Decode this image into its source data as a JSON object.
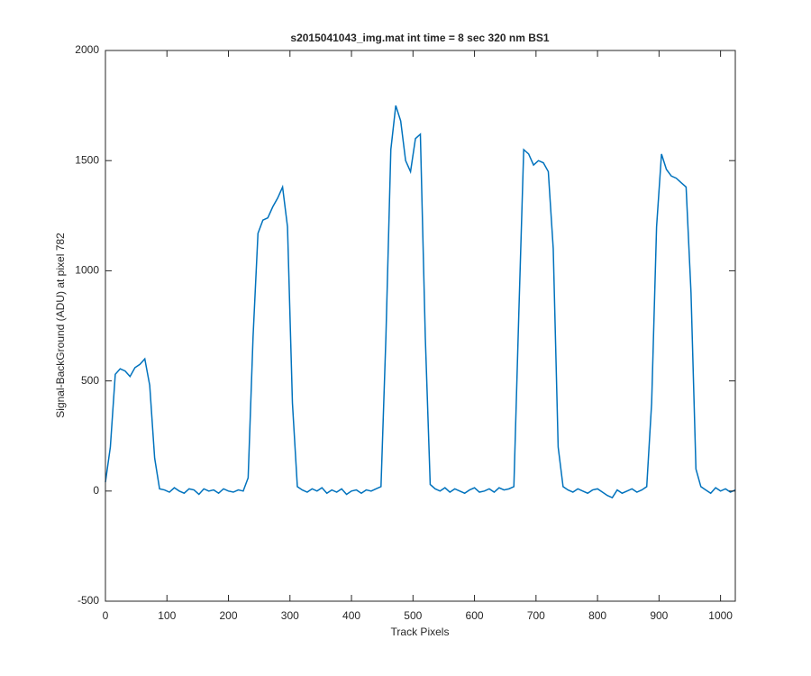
{
  "chart_data": {
    "type": "line",
    "title": "s2015041043_img.mat int time = 8 sec  320 nm BS1",
    "x_label": "Track Pixels",
    "y_label": "Signal-BackGround (ADU) at pixel 782",
    "x": [
      0,
      8,
      16,
      24,
      32,
      40,
      48,
      56,
      64,
      72,
      80,
      88,
      96,
      104,
      112,
      120,
      128,
      136,
      144,
      152,
      160,
      168,
      176,
      184,
      192,
      200,
      208,
      216,
      224,
      232,
      240,
      248,
      256,
      264,
      272,
      280,
      288,
      296,
      304,
      312,
      320,
      328,
      336,
      344,
      352,
      360,
      368,
      376,
      384,
      392,
      400,
      408,
      416,
      424,
      432,
      440,
      448,
      456,
      464,
      472,
      480,
      488,
      496,
      504,
      512,
      520,
      528,
      536,
      544,
      552,
      560,
      568,
      576,
      584,
      592,
      600,
      608,
      616,
      624,
      632,
      640,
      648,
      656,
      664,
      672,
      680,
      688,
      696,
      704,
      712,
      720,
      728,
      736,
      744,
      752,
      760,
      768,
      776,
      784,
      792,
      800,
      808,
      816,
      824,
      832,
      840,
      848,
      856,
      864,
      872,
      880,
      888,
      896,
      904,
      912,
      920,
      928,
      936,
      944,
      952,
      960,
      968,
      976,
      984,
      992,
      1000,
      1008,
      1016,
      1024
    ],
    "series": [
      {
        "color": "#0072bd",
        "values": [
          40,
          200,
          530,
          555,
          545,
          520,
          560,
          575,
          600,
          480,
          150,
          10,
          5,
          -5,
          15,
          0,
          -10,
          10,
          5,
          -15,
          10,
          0,
          5,
          -10,
          10,
          0,
          -5,
          5,
          0,
          60,
          700,
          1170,
          1230,
          1240,
          1290,
          1330,
          1380,
          1200,
          400,
          20,
          5,
          -5,
          10,
          0,
          15,
          -10,
          5,
          -5,
          10,
          -15,
          0,
          5,
          -10,
          5,
          0,
          10,
          20,
          700,
          1550,
          1750,
          1680,
          1500,
          1450,
          1600,
          1620,
          700,
          30,
          10,
          0,
          15,
          -5,
          10,
          0,
          -10,
          5,
          15,
          -5,
          0,
          10,
          -5,
          15,
          5,
          10,
          20,
          800,
          1550,
          1530,
          1480,
          1500,
          1490,
          1450,
          1100,
          200,
          20,
          5,
          -5,
          10,
          0,
          -10,
          5,
          10,
          -5,
          -20,
          -30,
          5,
          -10,
          0,
          10,
          -5,
          5,
          20,
          400,
          1200,
          1530,
          1460,
          1430,
          1420,
          1400,
          1380,
          900,
          100,
          20,
          5,
          -10,
          15,
          0,
          10,
          -5,
          5
        ]
      }
    ],
    "xlim": [
      0,
      1024
    ],
    "ylim": [
      -500,
      2000
    ],
    "xticks": [
      0,
      100,
      200,
      300,
      400,
      500,
      600,
      700,
      800,
      900,
      1000
    ],
    "yticks": [
      -500,
      0,
      500,
      1000,
      1500,
      2000
    ]
  }
}
